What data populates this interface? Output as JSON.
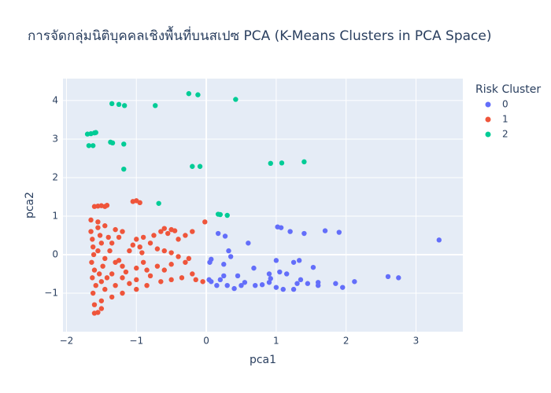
{
  "chart_data": {
    "type": "scatter",
    "title": "การจัดกลุ่มนิติบุคคลเชิงพื้นที่บนสเปซ PCA (K-Means Clusters in PCA Space)",
    "x_label": "pca1",
    "y_label": "pca2",
    "legend_title": "Risk Cluster",
    "xlim": [
      -2.05,
      3.67
    ],
    "ylim": [
      -2.0,
      4.57
    ],
    "xticks": [
      {
        "value": -2,
        "label": "−2"
      },
      {
        "value": -1,
        "label": "−1"
      },
      0,
      1,
      2,
      3
    ],
    "yticks": [
      {
        "value": -1,
        "label": "−1"
      },
      0,
      1,
      2,
      3,
      4
    ],
    "grid": true,
    "legend": "right",
    "series": [
      {
        "name": "0",
        "color": "#636efa",
        "x": [
          1.02,
          1.07,
          1.2,
          1.4,
          1.7,
          1.9,
          3.33,
          0.17,
          0.27,
          0.6,
          0.32,
          0.35,
          0.07,
          0.05,
          0.25,
          1,
          1.25,
          1.33,
          1.53,
          0.68,
          1.05,
          1.15,
          0.9,
          2.6,
          2.75,
          2.12,
          1.85,
          1.6,
          0.04,
          0.2,
          0.45,
          0.55,
          0.7,
          0.9,
          1.0,
          1.1,
          1.3,
          1.35,
          1.45,
          0.15,
          0.3,
          0.4,
          0.8,
          1.25,
          1.6,
          1.95,
          0.07,
          0.25,
          0.5,
          0.92
        ],
        "y": [
          0.72,
          0.7,
          0.6,
          0.55,
          0.62,
          0.58,
          0.38,
          0.55,
          0.48,
          0.3,
          0.1,
          -0.05,
          -0.12,
          -0.2,
          -0.25,
          -0.15,
          -0.2,
          -0.15,
          -0.33,
          -0.35,
          -0.45,
          -0.5,
          -0.5,
          -0.57,
          -0.6,
          -0.7,
          -0.75,
          -0.72,
          -0.65,
          -0.65,
          -0.55,
          -0.72,
          -0.8,
          -0.72,
          -0.85,
          -0.9,
          -0.75,
          -0.65,
          -0.75,
          -0.8,
          -0.8,
          -0.88,
          -0.78,
          -0.9,
          -0.8,
          -0.85,
          -0.7,
          -0.55,
          -0.8,
          -0.62
        ]
      },
      {
        "name": "1",
        "color": "#EF553B",
        "x": [
          -1.6,
          -1.55,
          -1.5,
          -1.45,
          -1.42,
          -1.05,
          -1.0,
          -0.95,
          -1.65,
          -1.55,
          -1.45,
          -1.3,
          -1.2,
          -0.6,
          -0.5,
          -0.45,
          -0.65,
          -0.3,
          -0.02,
          -0.55,
          -0.75,
          -0.9,
          -1.0,
          -1.25,
          -1.35,
          -0.95,
          -1.1,
          -0.92,
          -0.7,
          -0.6,
          -0.5,
          -0.25,
          -0.3,
          -0.5,
          -0.7,
          -0.85,
          -1.0,
          -1.2,
          -1.3,
          -1.45,
          -0.2,
          -0.35,
          -0.5,
          -0.65,
          -0.8,
          -1.0,
          -1.1,
          -1.2,
          -1.35,
          -0.05,
          -0.15,
          -0.85,
          -1.0,
          -1.2,
          -1.35,
          -1.5,
          -1.6,
          -1.55,
          -1.6,
          -1.5,
          -1.65,
          -1.63,
          -1.62,
          -1.61,
          -1.64,
          -1.6,
          -1.63,
          -1.58,
          -1.62,
          -1.55,
          -1.52,
          -1.5,
          -1.55,
          -1.48,
          -1.53,
          -1.5,
          -1.45,
          -1.4,
          -1.38,
          -1.42,
          -1.3,
          -1.25,
          -1.15,
          -1.05,
          -0.8,
          -0.4,
          -0.2,
          -0.4,
          -0.6,
          -0.9
        ],
        "y": [
          1.25,
          1.26,
          1.27,
          1.25,
          1.28,
          1.38,
          1.4,
          1.35,
          0.9,
          0.85,
          0.75,
          0.65,
          0.6,
          0.68,
          0.65,
          0.62,
          0.6,
          0.5,
          0.85,
          0.55,
          0.5,
          0.45,
          0.4,
          0.45,
          0.3,
          0.2,
          0.1,
          0.05,
          0.15,
          0.1,
          0.05,
          -0.1,
          -0.2,
          -0.25,
          -0.3,
          -0.4,
          -0.35,
          -0.3,
          -0.2,
          -0.1,
          -0.5,
          -0.6,
          -0.65,
          -0.7,
          -0.55,
          -0.65,
          -0.75,
          -0.6,
          -0.5,
          -0.7,
          -0.65,
          -0.8,
          -0.9,
          -1.0,
          -1.1,
          -1.2,
          -1.3,
          -1.5,
          -1.52,
          -1.4,
          0.6,
          0.4,
          0.2,
          0.0,
          -0.2,
          -0.4,
          -0.6,
          -0.8,
          -1.0,
          0.7,
          0.5,
          0.3,
          0.1,
          -0.3,
          -0.5,
          -0.7,
          -0.9,
          0.45,
          0.1,
          -0.6,
          -0.8,
          -0.15,
          -0.45,
          0.25,
          0.3,
          0.4,
          0.6,
          -0.05,
          -0.4,
          -0.2
        ]
      },
      {
        "name": "2",
        "color": "#00cc96",
        "x": [
          -1.35,
          -1.25,
          -1.17,
          -0.73,
          -0.25,
          -0.12,
          0.42,
          -1.7,
          -1.65,
          -1.6,
          -1.58,
          -1.68,
          -1.62,
          -1.37,
          -1.34,
          -1.18,
          -1.18,
          -0.2,
          -0.09,
          0.92,
          1.08,
          1.4,
          -0.68,
          0.2,
          0.3,
          0.17
        ],
        "y": [
          3.92,
          3.9,
          3.87,
          3.87,
          4.18,
          4.15,
          4.03,
          3.13,
          3.14,
          3.16,
          3.17,
          2.83,
          2.83,
          2.92,
          2.9,
          2.87,
          2.22,
          2.29,
          2.29,
          2.37,
          2.38,
          2.41,
          1.33,
          1.04,
          1.02,
          1.05
        ]
      }
    ]
  }
}
